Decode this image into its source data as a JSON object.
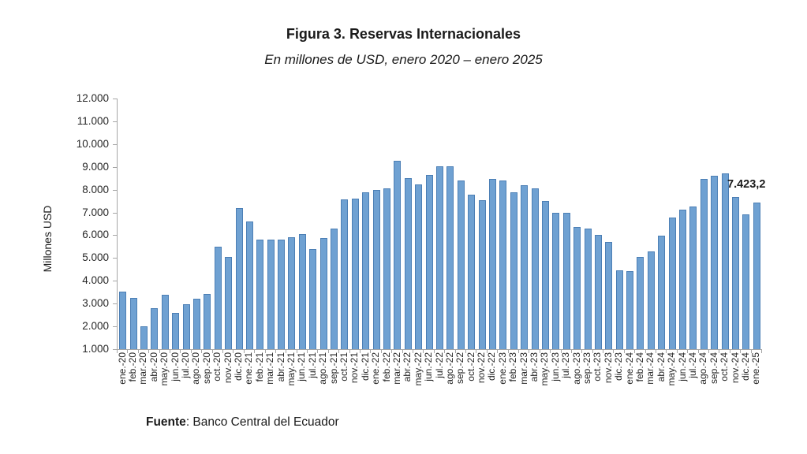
{
  "chart_data": {
    "type": "bar",
    "title": "Figura 3. Reservas Internacionales",
    "subtitle": "En millones de USD, enero 2020 – enero 2025",
    "xlabel": "",
    "ylabel": "Millones USD",
    "ylim": [
      1000,
      12000
    ],
    "ytick_interval": 1000,
    "ytick_labels": [
      "1.000",
      "2.000",
      "3.000",
      "4.000",
      "5.000",
      "6.000",
      "7.000",
      "8.000",
      "9.000",
      "10.000",
      "11.000",
      "12.000"
    ],
    "grid": false,
    "legend": false,
    "bar_fill": "#6FA1D2",
    "bar_border": "#4C7FB5",
    "axis_color": "#A6A6A6",
    "categories": [
      "ene.-20",
      "feb.-20",
      "mar.-20",
      "abr.-20",
      "may.-20",
      "jun.-20",
      "jul.-20",
      "ago.-20",
      "sep.-20",
      "oct.-20",
      "nov.-20",
      "dic.-20",
      "ene.-21",
      "feb.-21",
      "mar.-21",
      "abr.-21",
      "may.-21",
      "jun.-21",
      "jul.-21",
      "ago.-21",
      "sep.-21",
      "oct.-21",
      "nov.-21",
      "dic.-21",
      "ene.-22",
      "feb.-22",
      "mar.-22",
      "abr.-22",
      "may.-22",
      "jun.-22",
      "jul.-22",
      "ago.-22",
      "sep.-22",
      "oct.-22",
      "nov.-22",
      "dic.-22",
      "ene.-23",
      "feb.-23",
      "mar.-23",
      "abr.-23",
      "may.-23",
      "jun.-23",
      "jul.-23",
      "ago.-23",
      "sep.-23",
      "oct.-23",
      "nov.-23",
      "dic.-23",
      "ene.-24",
      "feb.-24",
      "mar.-24",
      "abr.-24",
      "may.-24",
      "jun.-24",
      "jul.-24",
      "ago.-24",
      "sep.-24",
      "oct.-24",
      "nov.-24",
      "dic.-24",
      "ene.-25"
    ],
    "values": [
      3527,
      3240,
      1990,
      2810,
      3380,
      2600,
      2970,
      3200,
      3410,
      5510,
      5060,
      7200,
      6620,
      5800,
      5800,
      5800,
      5920,
      6060,
      5390,
      5870,
      6290,
      7560,
      7590,
      7900,
      8000,
      8050,
      9270,
      8510,
      8230,
      8660,
      9040,
      9030,
      8390,
      7770,
      7550,
      8460,
      8410,
      7880,
      8200,
      8050,
      7500,
      6990,
      6970,
      6350,
      6300,
      6010,
      5700,
      4455,
      4430,
      5050,
      5290,
      5980,
      6780,
      7120,
      7260,
      8460,
      8610,
      8700,
      7680,
      6920,
      7423.2
    ],
    "data_label": {
      "text": "7.423,2",
      "category": "ene.-25",
      "value": 7423.2
    },
    "source_label": "Fuente",
    "source_text": ": Banco Central del Ecuador"
  }
}
